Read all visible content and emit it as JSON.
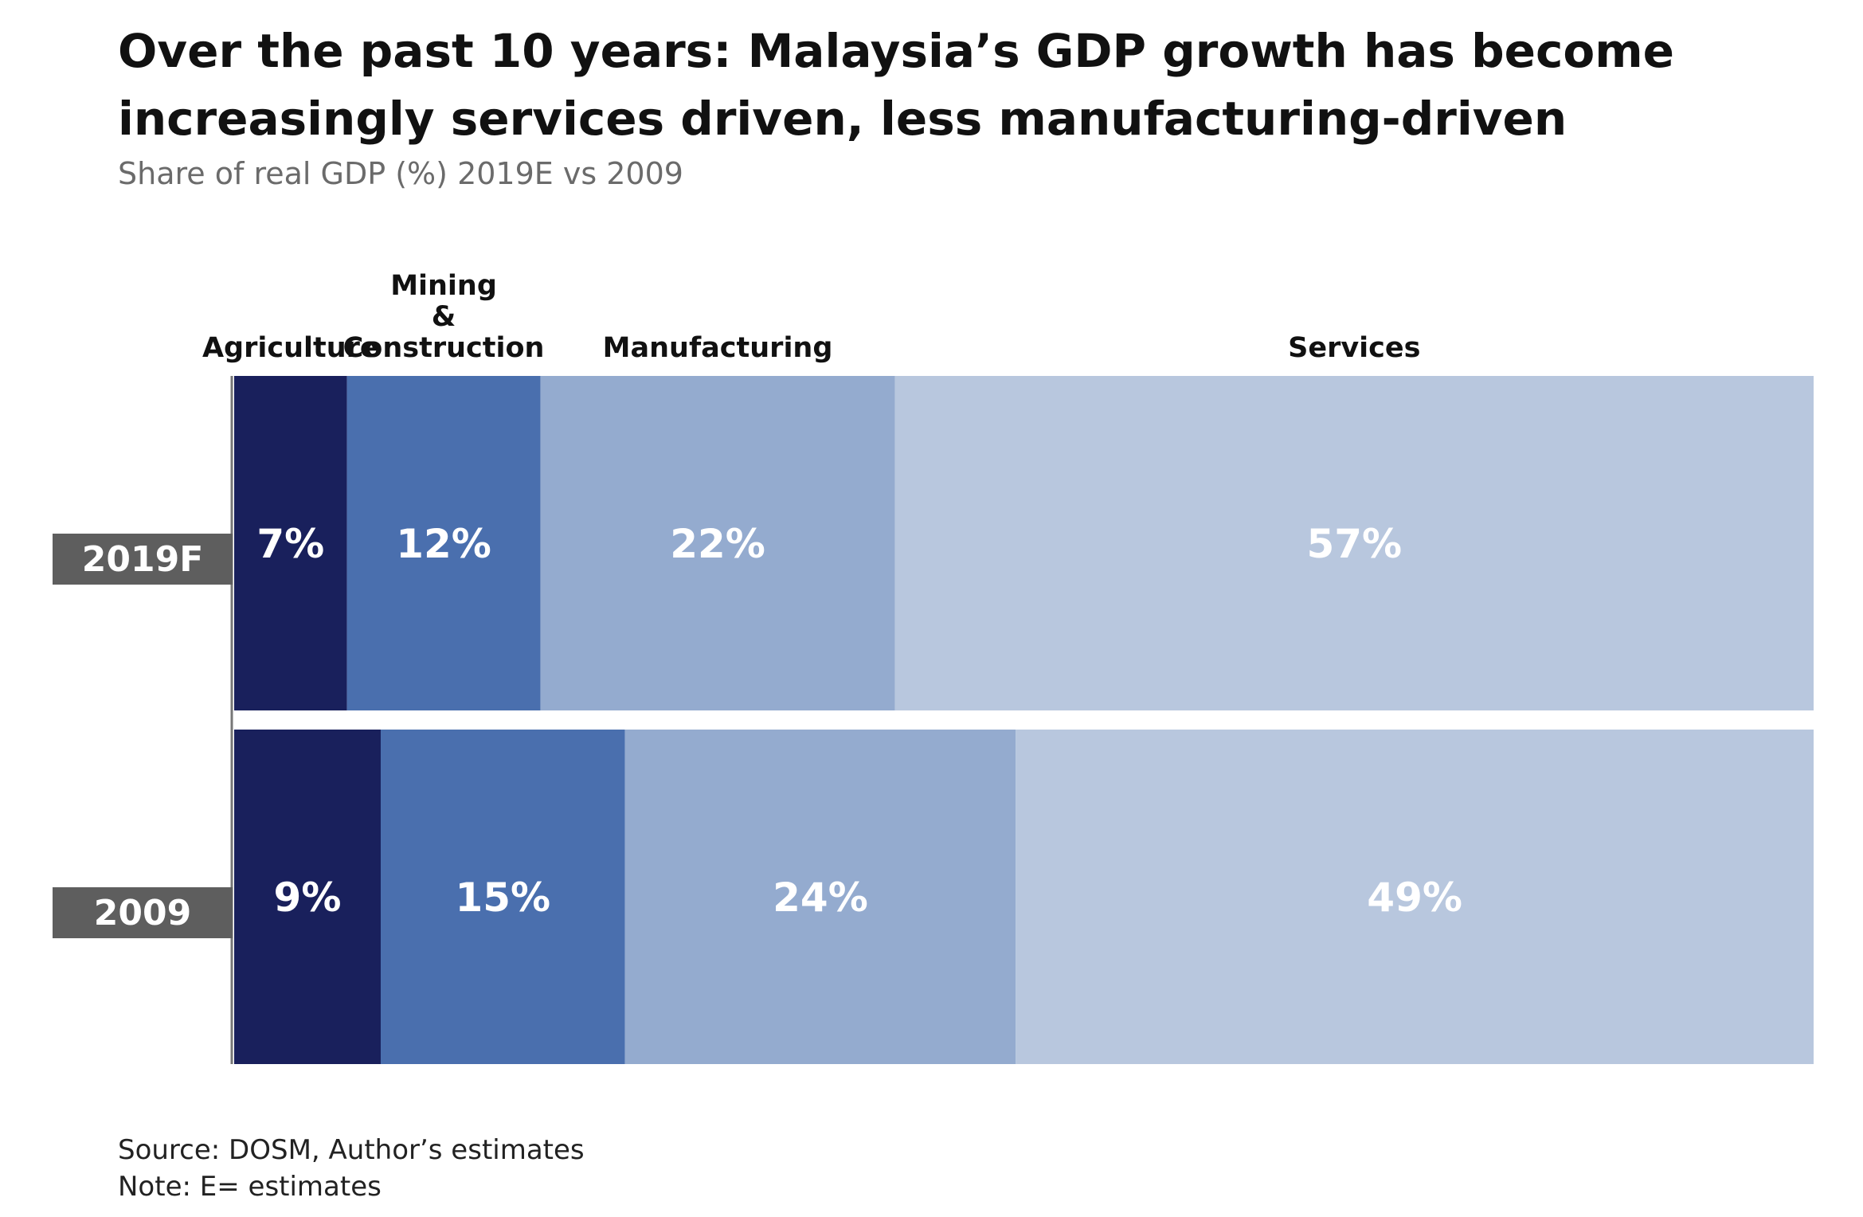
{
  "title": "Over the past 10 years: Malaysia’s GDP growth has become increasingly services driven, less manufacturing-driven",
  "subtitle": "Share of real GDP (%) 2019E vs 2009",
  "source": "Source: DOSM, Author’s estimates",
  "note": "Note: E= estimates",
  "colors": {
    "agriculture": "#19205c",
    "mining_construction": "#4a6fae",
    "manufacturing": "#94abcf",
    "services": "#b8c7de",
    "year_tag": "#5e5e5e",
    "axis_line": "#777777"
  },
  "chart_data": {
    "type": "bar",
    "orientation": "horizontal",
    "stacked": true,
    "categories": [
      "2019F",
      "2009"
    ],
    "series": [
      {
        "name": "Agriculture",
        "header_lines": [
          "Agriculture"
        ],
        "values": [
          7,
          9
        ],
        "labels": [
          "7%",
          "9%"
        ]
      },
      {
        "name": "Mining & Construction",
        "header_lines": [
          "Mining",
          "&",
          "Construction"
        ],
        "values": [
          12,
          15
        ],
        "labels": [
          "12%",
          "15%"
        ]
      },
      {
        "name": "Manufacturing",
        "header_lines": [
          "Manufacturing"
        ],
        "values": [
          22,
          24
        ],
        "labels": [
          "22%",
          "24%"
        ]
      },
      {
        "name": "Services",
        "header_lines": [
          "Services"
        ],
        "values": [
          57,
          49
        ],
        "labels": [
          "57%",
          "49%"
        ]
      }
    ],
    "xlim": [
      0,
      100
    ],
    "grid": false,
    "legend": "top"
  }
}
